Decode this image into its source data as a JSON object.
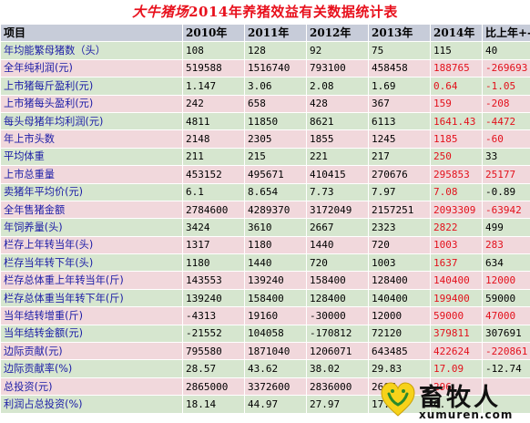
{
  "title": {
    "brand": "大牛猪场",
    "text": "2014年养猪效益有关数据统计表"
  },
  "header": [
    "项目",
    "2010年",
    "2011年",
    "2012年",
    "2013年",
    "2014年",
    "比上年+-"
  ],
  "rows": [
    [
      "年均能繁母猪数（头）",
      "108",
      "128",
      "92",
      "75",
      "115",
      "40"
    ],
    [
      "全年纯利润(元)",
      "519588",
      "1516740",
      "793100",
      "458458",
      "188765",
      "-269693"
    ],
    [
      "上市猪每斤盈利(元)",
      "1.147",
      "3.06",
      "2.08",
      "1.69",
      "0.64",
      "-1.05"
    ],
    [
      "上市猪每头盈利(元)",
      "242",
      "658",
      "428",
      "367",
      "159",
      "-208"
    ],
    [
      "每头母猪年均利润(元)",
      "4811",
      "11850",
      "8621",
      "6113",
      "1641.43",
      "-4472"
    ],
    [
      "年上市头数",
      "2148",
      "2305",
      "1855",
      "1245",
      "1185",
      "-60"
    ],
    [
      "平均体重",
      "211",
      "215",
      "221",
      "217",
      "250",
      "33"
    ],
    [
      "上市总重量",
      "453152",
      "495671",
      "410415",
      "270676",
      "295853",
      "25177"
    ],
    [
      "卖猪年平均价(元)",
      "6.1",
      "8.654",
      "7.73",
      "7.97",
      "7.08",
      "-0.89"
    ],
    [
      "全年售猪金额",
      "2784600",
      "4289370",
      "3172049",
      "2157251",
      "2093309",
      "-63942"
    ],
    [
      "年饲养量(头)",
      "3424",
      "3610",
      "2667",
      "2323",
      "2822",
      "499"
    ],
    [
      "栏存上年转当年(头)",
      "1317",
      "1180",
      "1440",
      "720",
      "1003",
      "283"
    ],
    [
      "栏存当年转下年(头)",
      "1180",
      "1440",
      "720",
      "1003",
      "1637",
      "634"
    ],
    [
      "栏存总体重上年转当年(斤)",
      "143553",
      "139240",
      "158400",
      "128400",
      "140400",
      "12000"
    ],
    [
      "栏存总体重当年转下年(斤)",
      "139240",
      "158400",
      "128400",
      "140400",
      "199400",
      "59000"
    ],
    [
      "当年结转增重(斤)",
      "-4313",
      "19160",
      "-30000",
      "12000",
      "59000",
      "47000"
    ],
    [
      "当年结转金额(元)",
      "-21552",
      "104058",
      "-170812",
      "72120",
      "379811",
      "307691"
    ],
    [
      "边际贡献(元)",
      "795580",
      "1871040",
      "1206071",
      "643485",
      "422624",
      "-220861"
    ],
    [
      "边际贡献率(%)",
      "28.57",
      "43.62",
      "38.02",
      "29.83",
      "17.09",
      "-12.74"
    ],
    [
      "总投资(元)",
      "2865000",
      "3372600",
      "2836000",
      "2667",
      "296",
      ""
    ],
    [
      "利润占总投资(%)",
      "18.14",
      "44.97",
      "27.97",
      "17.18",
      "6.",
      ""
    ]
  ],
  "watermark": {
    "name": "畜牧人",
    "domain": "xumuren.com"
  },
  "colors": {
    "title": "#e8101c",
    "header_bg": "#c7ccd9",
    "row_green": "#d6e6cf",
    "row_pink": "#f1d8dc",
    "label_blue": "#1a1aa6",
    "value_red": "#e3101b"
  }
}
